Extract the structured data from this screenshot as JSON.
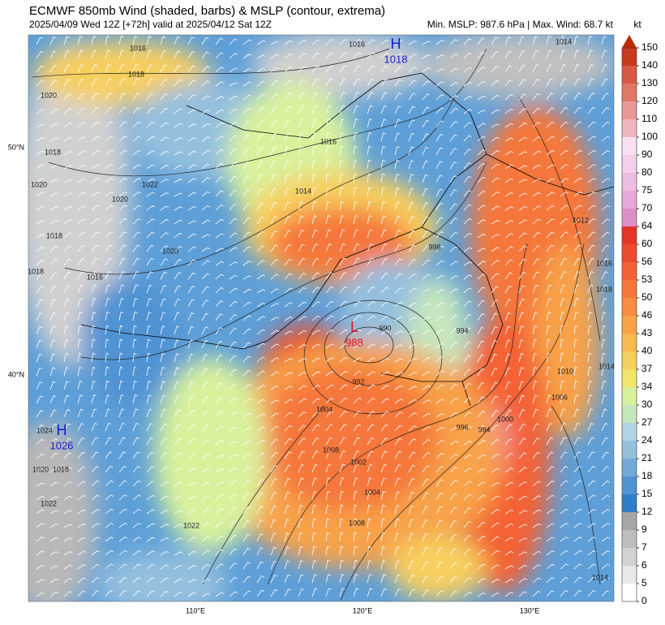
{
  "header": {
    "title": "ECMWF 850mb Wind (shaded, barbs) & MSLP (contour, extrema)",
    "subtitle": "2025/04/09 Wed 12Z [+72h] valid at 2025/04/12 Sat 12Z",
    "info": "Min. MSLP: 987.6 hPa | Max. Wind: 68.7 kt"
  },
  "colorbar": {
    "unit": "kt",
    "ticks": [
      0,
      5,
      6,
      7,
      9,
      12,
      15,
      18,
      21,
      24,
      27,
      30,
      34,
      37,
      40,
      43,
      46,
      50,
      53,
      56,
      60,
      64,
      70,
      75,
      80,
      90,
      100,
      110,
      120,
      130,
      140,
      150
    ],
    "colors": [
      "#ffffff",
      "#e8e8e8",
      "#d2d2d2",
      "#bdbdbd",
      "#a6a6a6",
      "#2f7fc8",
      "#4f93d3",
      "#72a9d9",
      "#94c0de",
      "#b1d3e2",
      "#c6e6bd",
      "#d8f29c",
      "#f2e46c",
      "#f7cf5e",
      "#f8b852",
      "#f8a24a",
      "#f78c42",
      "#f6773a",
      "#f46234",
      "#ee4a2e",
      "#e63528",
      "#df8fc6",
      "#e8a6d6",
      "#efbde0",
      "#f4cfea",
      "#f8e0f1",
      "#f0b6bf",
      "#e89797",
      "#e07868",
      "#d65a44",
      "#c83a1c"
    ],
    "top_color": "#c02800"
  },
  "axes": {
    "lon": [
      "110°E",
      "120°E",
      "130°E"
    ],
    "lat": [
      "50°N",
      "40°N"
    ]
  },
  "centers": [
    {
      "symbol": "H",
      "value": "1018",
      "color": "#1a1acc"
    },
    {
      "symbol": "L",
      "value": "988",
      "color": "#e0102a"
    },
    {
      "symbol": "H",
      "value": "1026",
      "color": "#1a1acc"
    }
  ],
  "contour_labels": [
    "1016",
    "1018",
    "1020",
    "1018",
    "1022",
    "1020",
    "1018",
    "1016",
    "1016",
    "1014",
    "1014",
    "1012",
    "1016",
    "1018",
    "1010",
    "1014",
    "1008",
    "1006",
    "1004",
    "1002",
    "1000",
    "998",
    "996",
    "994",
    "994",
    "992",
    "990",
    "1024",
    "1020",
    "1018",
    "1022",
    "1022",
    "1020",
    "1018",
    "1020",
    "1016",
    "1008",
    "1004",
    "1014"
  ]
}
